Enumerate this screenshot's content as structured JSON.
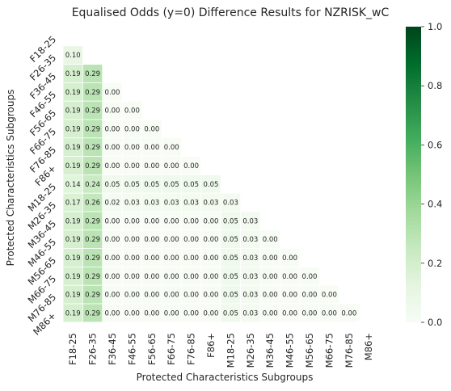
{
  "chart_data": {
    "type": "heatmap",
    "title": "Equalised Odds (y=0) Difference Results for NZRISK_wC",
    "xlabel": "Protected Characteristics Subgroups",
    "ylabel": "Protected Characteristics Subgroups",
    "categories": [
      "F18-25",
      "F26-35",
      "F36-45",
      "F46-55",
      "F56-65",
      "F66-75",
      "F76-85",
      "F86+",
      "M18-25",
      "M26-35",
      "M36-45",
      "M46-55",
      "M56-65",
      "M66-75",
      "M76-85",
      "M86+"
    ],
    "mask": "lower-triangle",
    "colormap": "Greens",
    "vmin": 0,
    "vmax": 1,
    "colorbar_ticks": [
      "0.0",
      "0.2",
      "0.4",
      "0.6",
      "0.8",
      "1.0"
    ],
    "values": [
      [],
      [
        0.1
      ],
      [
        0.19,
        0.29
      ],
      [
        0.19,
        0.29,
        0.0
      ],
      [
        0.19,
        0.29,
        0.0,
        0.0
      ],
      [
        0.19,
        0.29,
        0.0,
        0.0,
        0.0
      ],
      [
        0.19,
        0.29,
        0.0,
        0.0,
        0.0,
        0.0
      ],
      [
        0.19,
        0.29,
        0.0,
        0.0,
        0.0,
        0.0,
        0.0
      ],
      [
        0.14,
        0.24,
        0.05,
        0.05,
        0.05,
        0.05,
        0.05,
        0.05
      ],
      [
        0.17,
        0.26,
        0.02,
        0.03,
        0.03,
        0.03,
        0.03,
        0.03,
        0.03
      ],
      [
        0.19,
        0.29,
        0.0,
        0.0,
        0.0,
        0.0,
        0.0,
        0.0,
        0.05,
        0.03
      ],
      [
        0.19,
        0.29,
        0.0,
        0.0,
        0.0,
        0.0,
        0.0,
        0.0,
        0.05,
        0.03,
        0.0
      ],
      [
        0.19,
        0.29,
        0.0,
        0.0,
        0.0,
        0.0,
        0.0,
        0.0,
        0.05,
        0.03,
        0.0,
        0.0
      ],
      [
        0.19,
        0.29,
        0.0,
        0.0,
        0.0,
        0.0,
        0.0,
        0.0,
        0.05,
        0.03,
        0.0,
        0.0,
        0.0
      ],
      [
        0.19,
        0.29,
        0.0,
        0.0,
        0.0,
        0.0,
        0.0,
        0.0,
        0.05,
        0.03,
        0.0,
        0.0,
        0.0,
        0.0
      ],
      [
        0.19,
        0.29,
        0.0,
        0.0,
        0.0,
        0.0,
        0.0,
        0.0,
        0.05,
        0.03,
        0.0,
        0.0,
        0.0,
        0.0,
        0.0
      ]
    ]
  }
}
